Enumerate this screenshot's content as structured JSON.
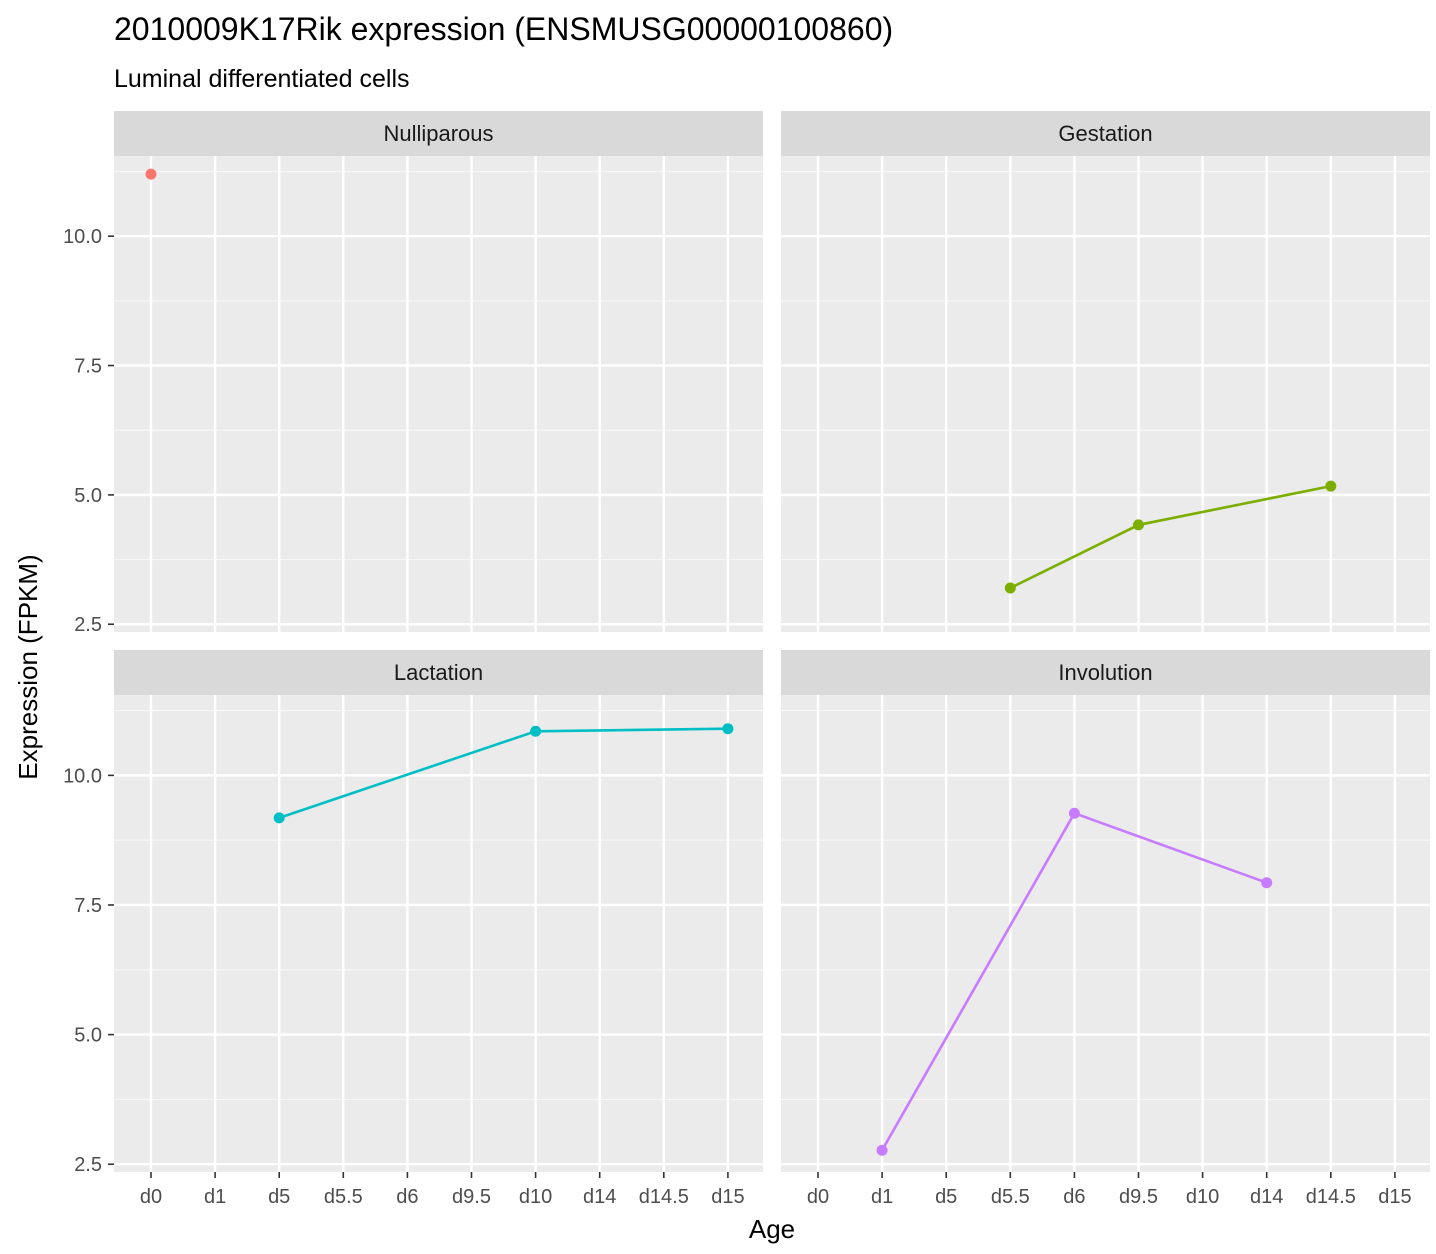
{
  "chart_data": {
    "type": "line",
    "title": "2010009K17Rik expression (ENSMUSG00000100860)",
    "subtitle": "Luminal differentiated cells",
    "xlabel": "Age",
    "ylabel": "Expression (FPKM)",
    "categories": [
      "d0",
      "d1",
      "d5",
      "d5.5",
      "d6",
      "d9.5",
      "d10",
      "d14",
      "d14.5",
      "d15"
    ],
    "ylim": [
      2.35,
      11.55
    ],
    "y_ticks": [
      2.5,
      5.0,
      7.5,
      10.0
    ],
    "y_tick_labels": [
      "2.5",
      "5.0",
      "7.5",
      "10.0"
    ],
    "grid": true,
    "panels": [
      {
        "name": "Nulliparous",
        "color": "#F8766D",
        "points": [
          {
            "x": "d0",
            "y": 11.2
          }
        ]
      },
      {
        "name": "Gestation",
        "color": "#7CAE00",
        "points": [
          {
            "x": "d5.5",
            "y": 3.2
          },
          {
            "x": "d9.5",
            "y": 4.42
          },
          {
            "x": "d14.5",
            "y": 5.17
          }
        ]
      },
      {
        "name": "Lactation",
        "color": "#00BFC4",
        "points": [
          {
            "x": "d5",
            "y": 9.18
          },
          {
            "x": "d10",
            "y": 10.85
          },
          {
            "x": "d15",
            "y": 10.9
          }
        ]
      },
      {
        "name": "Involution",
        "color": "#C77CFF",
        "points": [
          {
            "x": "d1",
            "y": 2.77
          },
          {
            "x": "d6",
            "y": 9.27
          },
          {
            "x": "d14",
            "y": 7.93
          }
        ]
      }
    ]
  }
}
